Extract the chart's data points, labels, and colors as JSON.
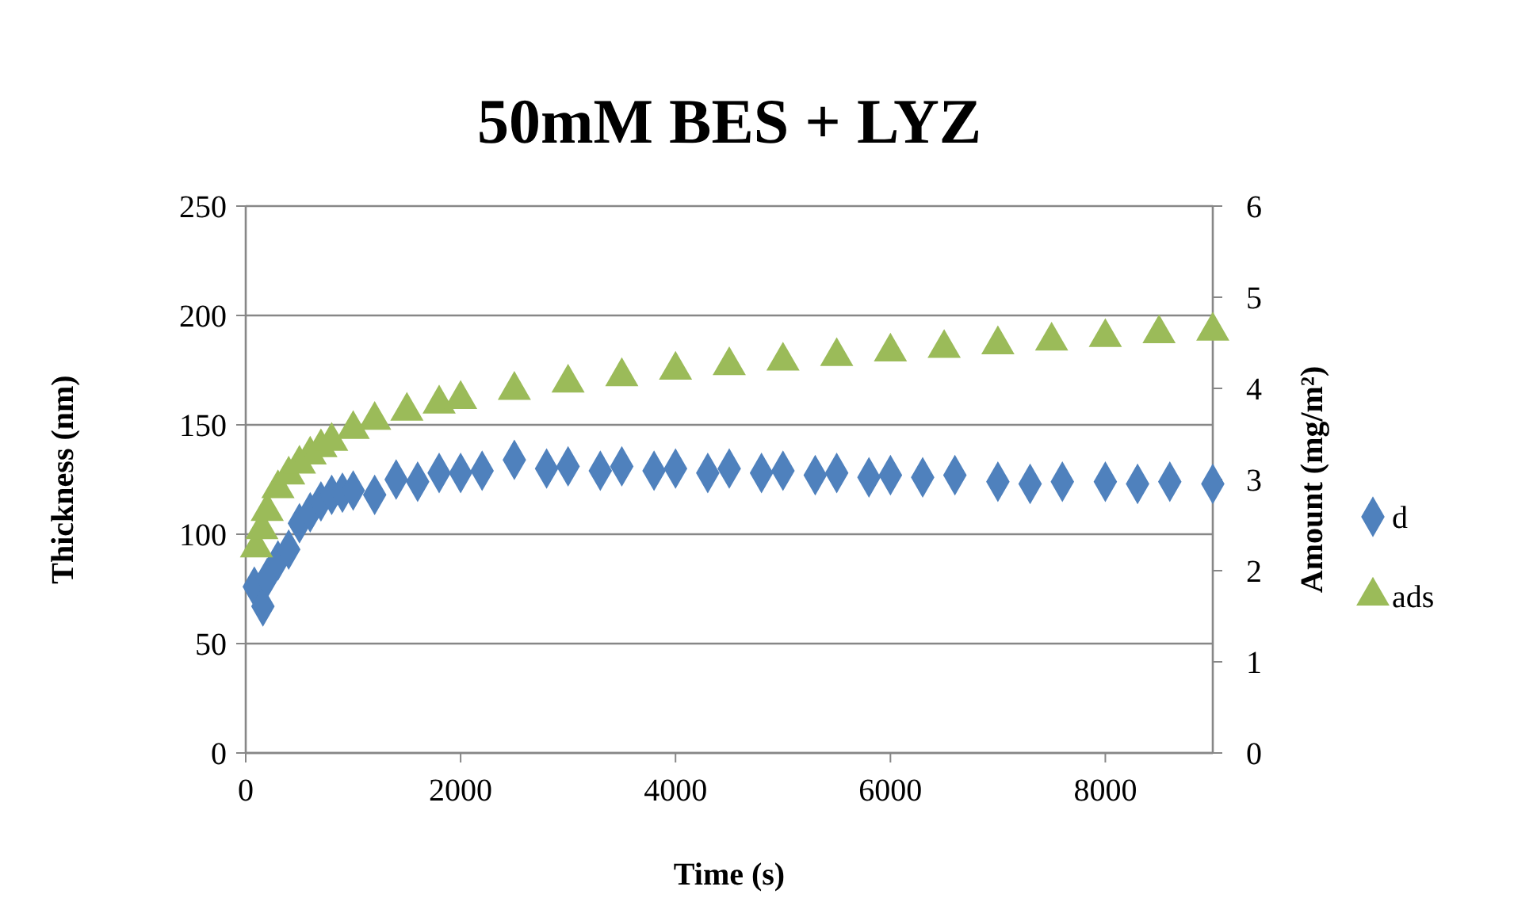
{
  "chart_data": {
    "type": "scatter",
    "title": "50mM BES + LYZ",
    "xlabel": "Time (s)",
    "ylabel": "Thickness (nm)",
    "y2label": "Amount (mg/m²)",
    "xlim": [
      0,
      9000
    ],
    "xticks": [
      0,
      2000,
      4000,
      6000,
      8000
    ],
    "ylim": [
      0,
      250
    ],
    "yticks": [
      0,
      50,
      100,
      150,
      200,
      250
    ],
    "y2lim": [
      0,
      6
    ],
    "y2ticks": [
      0,
      1,
      2,
      3,
      4,
      5,
      6
    ],
    "grid": "y",
    "legend": "right",
    "series": [
      {
        "name": "d",
        "color": "#4f81bd",
        "marker": "diamond",
        "x": [
          80,
          160,
          200,
          300,
          400,
          500,
          600,
          700,
          800,
          900,
          1000,
          1200,
          1400,
          1600,
          1800,
          2000,
          2200,
          2500,
          2800,
          3000,
          3300,
          3500,
          3800,
          4000,
          4300,
          4500,
          4800,
          5000,
          5300,
          5500,
          5800,
          6000,
          6300,
          6600,
          7000,
          7300,
          7600,
          8000,
          8300,
          8600,
          9000
        ],
        "values": [
          76,
          67,
          80,
          88,
          93,
          105,
          110,
          115,
          118,
          119,
          120,
          118,
          125,
          124,
          128,
          128,
          129,
          134,
          130,
          131,
          129,
          131,
          129,
          130,
          128,
          130,
          128,
          129,
          127,
          128,
          126,
          127,
          126,
          127,
          124,
          123,
          124,
          124,
          123,
          124,
          123
        ]
      },
      {
        "name": "ads",
        "color": "#9bbb59",
        "marker": "triangle",
        "axis": "y2",
        "x": [
          100,
          150,
          200,
          300,
          400,
          500,
          600,
          700,
          800,
          1000,
          1200,
          1500,
          1800,
          2000,
          2500,
          3000,
          3500,
          4000,
          4500,
          5000,
          5500,
          6000,
          6500,
          7000,
          7500,
          8000,
          8500,
          9000
        ],
        "values": [
          2.25,
          2.45,
          2.65,
          2.9,
          3.05,
          3.17,
          3.27,
          3.35,
          3.42,
          3.55,
          3.65,
          3.75,
          3.83,
          3.88,
          3.98,
          4.06,
          4.13,
          4.2,
          4.25,
          4.3,
          4.35,
          4.4,
          4.44,
          4.48,
          4.52,
          4.56,
          4.6,
          4.63
        ]
      }
    ]
  }
}
